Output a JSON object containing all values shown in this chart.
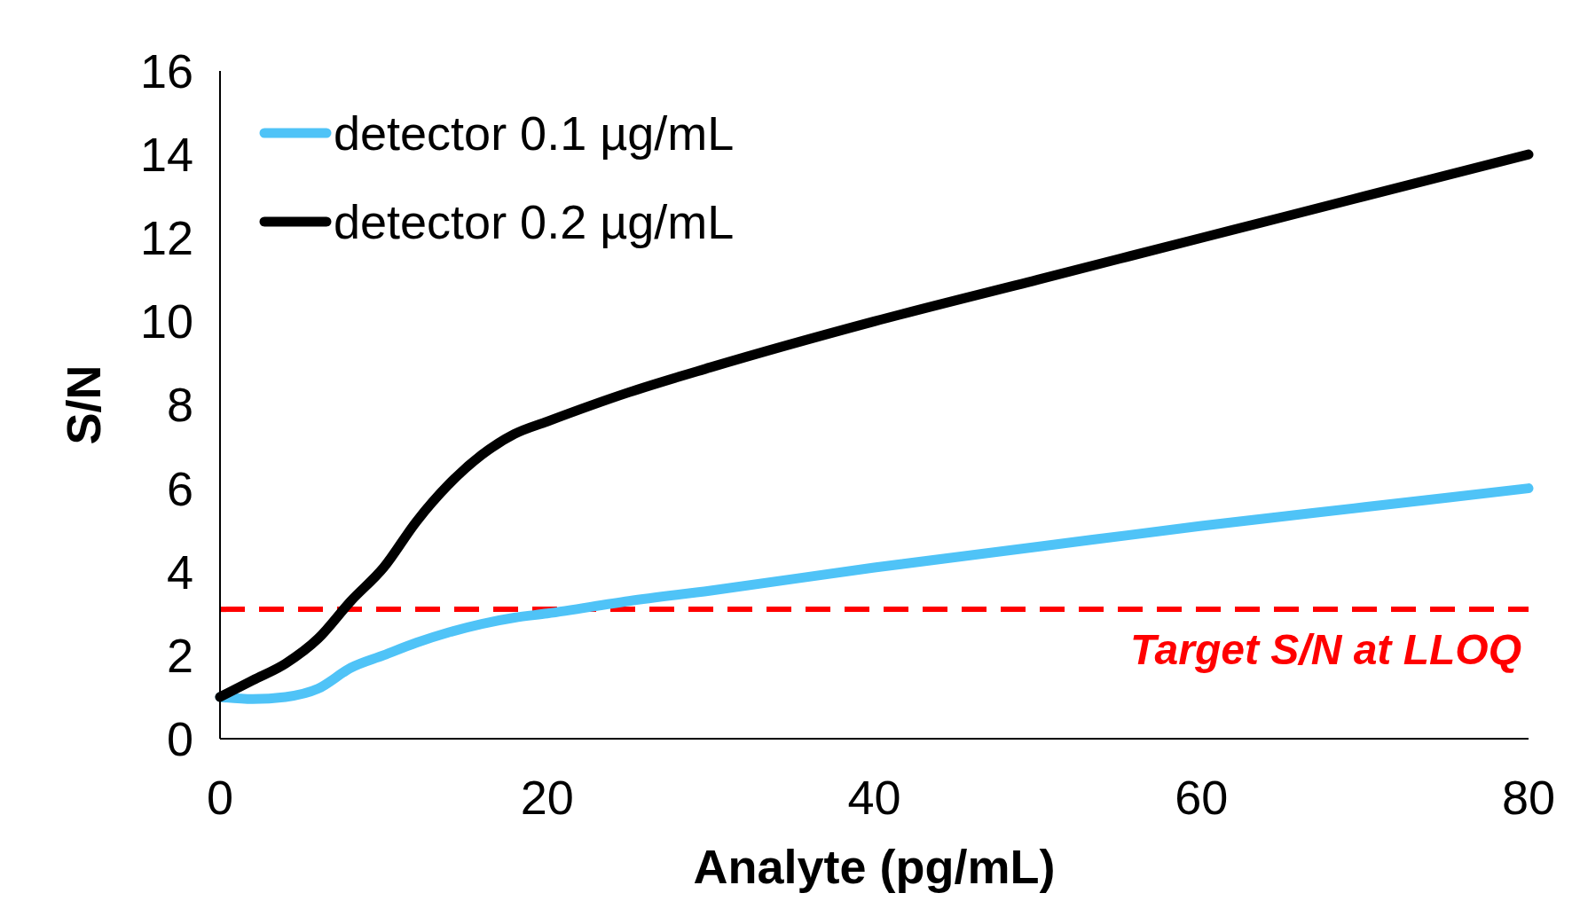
{
  "chart_data": {
    "type": "line",
    "xlabel": "Analyte (pg/mL)",
    "ylabel": "S/N",
    "xlim": [
      0,
      80
    ],
    "xticks": [
      0,
      20,
      40,
      60,
      80
    ],
    "ylim": [
      0,
      16
    ],
    "yticks": [
      0,
      2,
      4,
      6,
      8,
      10,
      12,
      14,
      16
    ],
    "grid": false,
    "legend": "top left",
    "marker": "none",
    "line_style": "solid",
    "series": [
      {
        "name": "detector 0.1 µg/mL",
        "color": "#4fc3f7",
        "x": [
          0,
          2,
          4,
          6,
          8,
          10,
          12,
          14,
          16,
          18,
          20,
          25,
          30,
          40,
          50,
          60,
          70,
          80
        ],
        "values": [
          1.0,
          0.95,
          1.0,
          1.2,
          1.7,
          2.0,
          2.3,
          2.55,
          2.75,
          2.9,
          3.0,
          3.3,
          3.55,
          4.1,
          4.6,
          5.1,
          5.55,
          6.0
        ]
      },
      {
        "name": "detector 0.2 µg/mL",
        "color": "#000000",
        "x": [
          0,
          2,
          4,
          6,
          8,
          10,
          12,
          14,
          16,
          18,
          20,
          25,
          30,
          40,
          50,
          60,
          70,
          80
        ],
        "values": [
          1.0,
          1.4,
          1.8,
          2.4,
          3.3,
          4.1,
          5.2,
          6.1,
          6.8,
          7.3,
          7.6,
          8.3,
          8.9,
          10.0,
          11.0,
          12.0,
          13.0,
          14.0
        ]
      }
    ],
    "ref_lines": [
      {
        "axis": "y",
        "value": 3.1,
        "label": "Target S/N at LLOQ",
        "color": "#ff0000",
        "line_style": "dashed"
      }
    ]
  }
}
